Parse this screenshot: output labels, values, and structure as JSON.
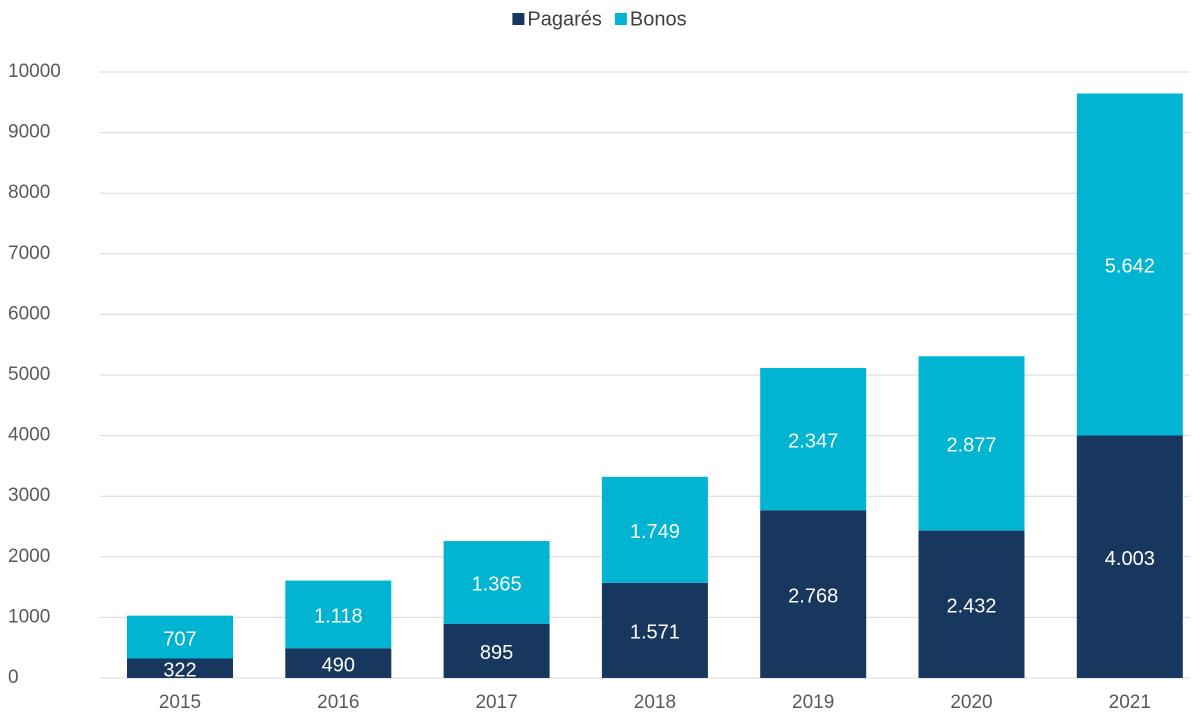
{
  "chart_data": {
    "type": "stacked_bar",
    "categories": [
      "2015",
      "2016",
      "2017",
      "2018",
      "2019",
      "2020",
      "2021"
    ],
    "series": [
      {
        "name": "Pagarés",
        "color": "#17375e",
        "values": [
          322,
          490,
          895,
          1571,
          2768,
          2432,
          4003
        ],
        "value_labels": [
          "322",
          "490",
          "895",
          "1.571",
          "2.768",
          "2.432",
          "4.003"
        ]
      },
      {
        "name": "Bonos",
        "color": "#00b4d2",
        "values": [
          707,
          1118,
          1365,
          1749,
          2347,
          2877,
          5642
        ],
        "value_labels": [
          "707",
          "1.118",
          "1.365",
          "1.749",
          "2.347",
          "2.877",
          "5.642"
        ]
      }
    ],
    "ylim": [
      0,
      10000
    ],
    "yticks": [
      0,
      1000,
      2000,
      3000,
      4000,
      5000,
      6000,
      7000,
      8000,
      9000,
      10000
    ],
    "grid": true,
    "legend": "top"
  }
}
